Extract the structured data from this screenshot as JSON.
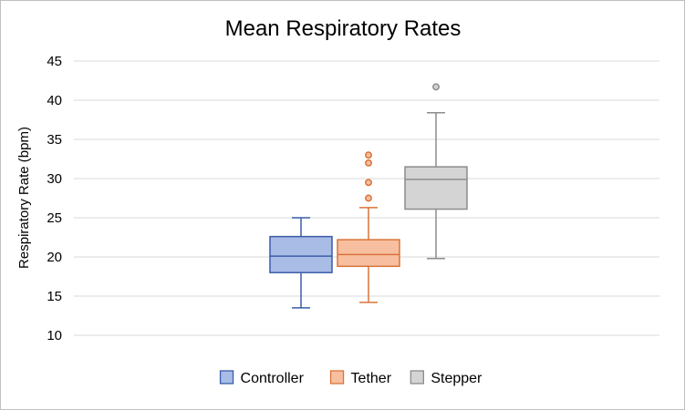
{
  "chart_data": {
    "type": "box",
    "title": "Mean Respiratory Rates",
    "xlabel": "",
    "ylabel": "Respiratory Rate (bpm)",
    "ylim": [
      10,
      45
    ],
    "yticks": [
      10,
      15,
      20,
      25,
      30,
      35,
      40,
      45
    ],
    "grid": true,
    "legend_position": "bottom",
    "series": [
      {
        "name": "Controller",
        "fill": "#a9bce6",
        "stroke": "#3a5ca8",
        "whisker_low": 13.5,
        "q1": 18.0,
        "median": 20.1,
        "q3": 22.6,
        "whisker_high": 25.0,
        "outliers": []
      },
      {
        "name": "Tether",
        "fill": "#f7bf9f",
        "stroke": "#d9733a",
        "whisker_low": 14.2,
        "q1": 18.8,
        "median": 20.3,
        "q3": 22.2,
        "whisker_high": 26.3,
        "outliers": [
          27.5,
          29.5,
          32.0,
          33.0
        ]
      },
      {
        "name": "Stepper",
        "fill": "#d4d4d4",
        "stroke": "#8c8c8c",
        "whisker_low": 19.8,
        "q1": 26.1,
        "median": 29.9,
        "q3": 31.5,
        "whisker_high": 38.4,
        "outliers": [
          41.7
        ]
      }
    ]
  }
}
